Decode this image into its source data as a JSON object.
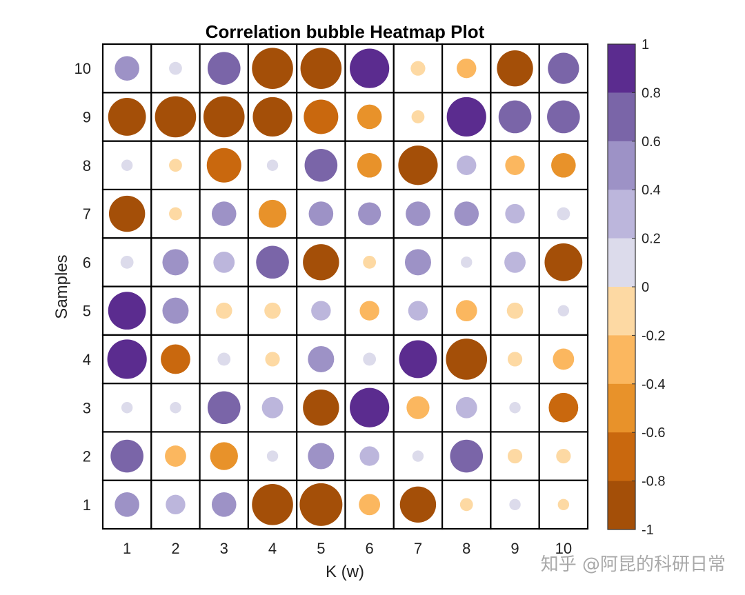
{
  "watermark": "知乎 @阿昆的科研日常",
  "chart_data": {
    "type": "heatmap",
    "title": "Correlation bubble Heatmap Plot",
    "xlabel": "K (w)",
    "ylabel": "Samples",
    "x_categories": [
      "1",
      "2",
      "3",
      "4",
      "5",
      "6",
      "7",
      "8",
      "9",
      "10"
    ],
    "y_categories": [
      "1",
      "2",
      "3",
      "4",
      "5",
      "6",
      "7",
      "8",
      "9",
      "10"
    ],
    "values": [
      [
        0.45,
        0.3,
        0.45,
        -0.95,
        -1.0,
        -0.35,
        -0.8,
        -0.1,
        0.05,
        -0.05
      ],
      [
        0.7,
        -0.35,
        -0.55,
        0.05,
        0.5,
        0.3,
        0.05,
        0.7,
        -0.15,
        -0.15
      ],
      [
        0.05,
        0.05,
        0.7,
        0.35,
        -0.8,
        0.9,
        -0.4,
        0.35,
        0.05,
        -0.6
      ],
      [
        0.9,
        -0.6,
        0.1,
        -0.15,
        0.5,
        0.1,
        0.85,
        -0.95,
        -0.15,
        -0.35
      ],
      [
        0.85,
        0.5,
        -0.2,
        -0.2,
        0.3,
        -0.3,
        0.3,
        -0.35,
        -0.2,
        0.05
      ],
      [
        0.1,
        0.5,
        0.35,
        0.7,
        -0.8,
        -0.1,
        0.5,
        0.05,
        0.35,
        -0.85
      ],
      [
        -0.8,
        -0.1,
        0.45,
        -0.55,
        0.45,
        0.4,
        0.45,
        0.45,
        0.3,
        0.1
      ],
      [
        0.05,
        -0.1,
        -0.75,
        0.05,
        0.7,
        -0.45,
        -0.9,
        0.3,
        -0.3,
        -0.45
      ],
      [
        -0.85,
        -0.95,
        -0.95,
        -0.9,
        -0.75,
        -0.45,
        -0.1,
        0.9,
        0.7,
        0.7
      ],
      [
        0.45,
        0.1,
        0.7,
        -0.95,
        -0.95,
        0.9,
        -0.15,
        -0.3,
        -0.8,
        0.65
      ]
    ],
    "value_range": [
      -1,
      1
    ],
    "colorbar": {
      "ticks": [
        "1",
        "0.8",
        "0.6",
        "0.4",
        "0.2",
        "0",
        "-0.2",
        "-0.4",
        "-0.6",
        "-0.8",
        "-1"
      ],
      "colors_top_to_bottom": [
        "#5b2c8f",
        "#7a65a8",
        "#9d92c6",
        "#bcb6dc",
        "#dcdbeb",
        "#fdd9a3",
        "#fbb75f",
        "#e8922a",
        "#c9680e",
        "#a44f08"
      ]
    },
    "grid": true,
    "legend": "colorbar-right"
  }
}
